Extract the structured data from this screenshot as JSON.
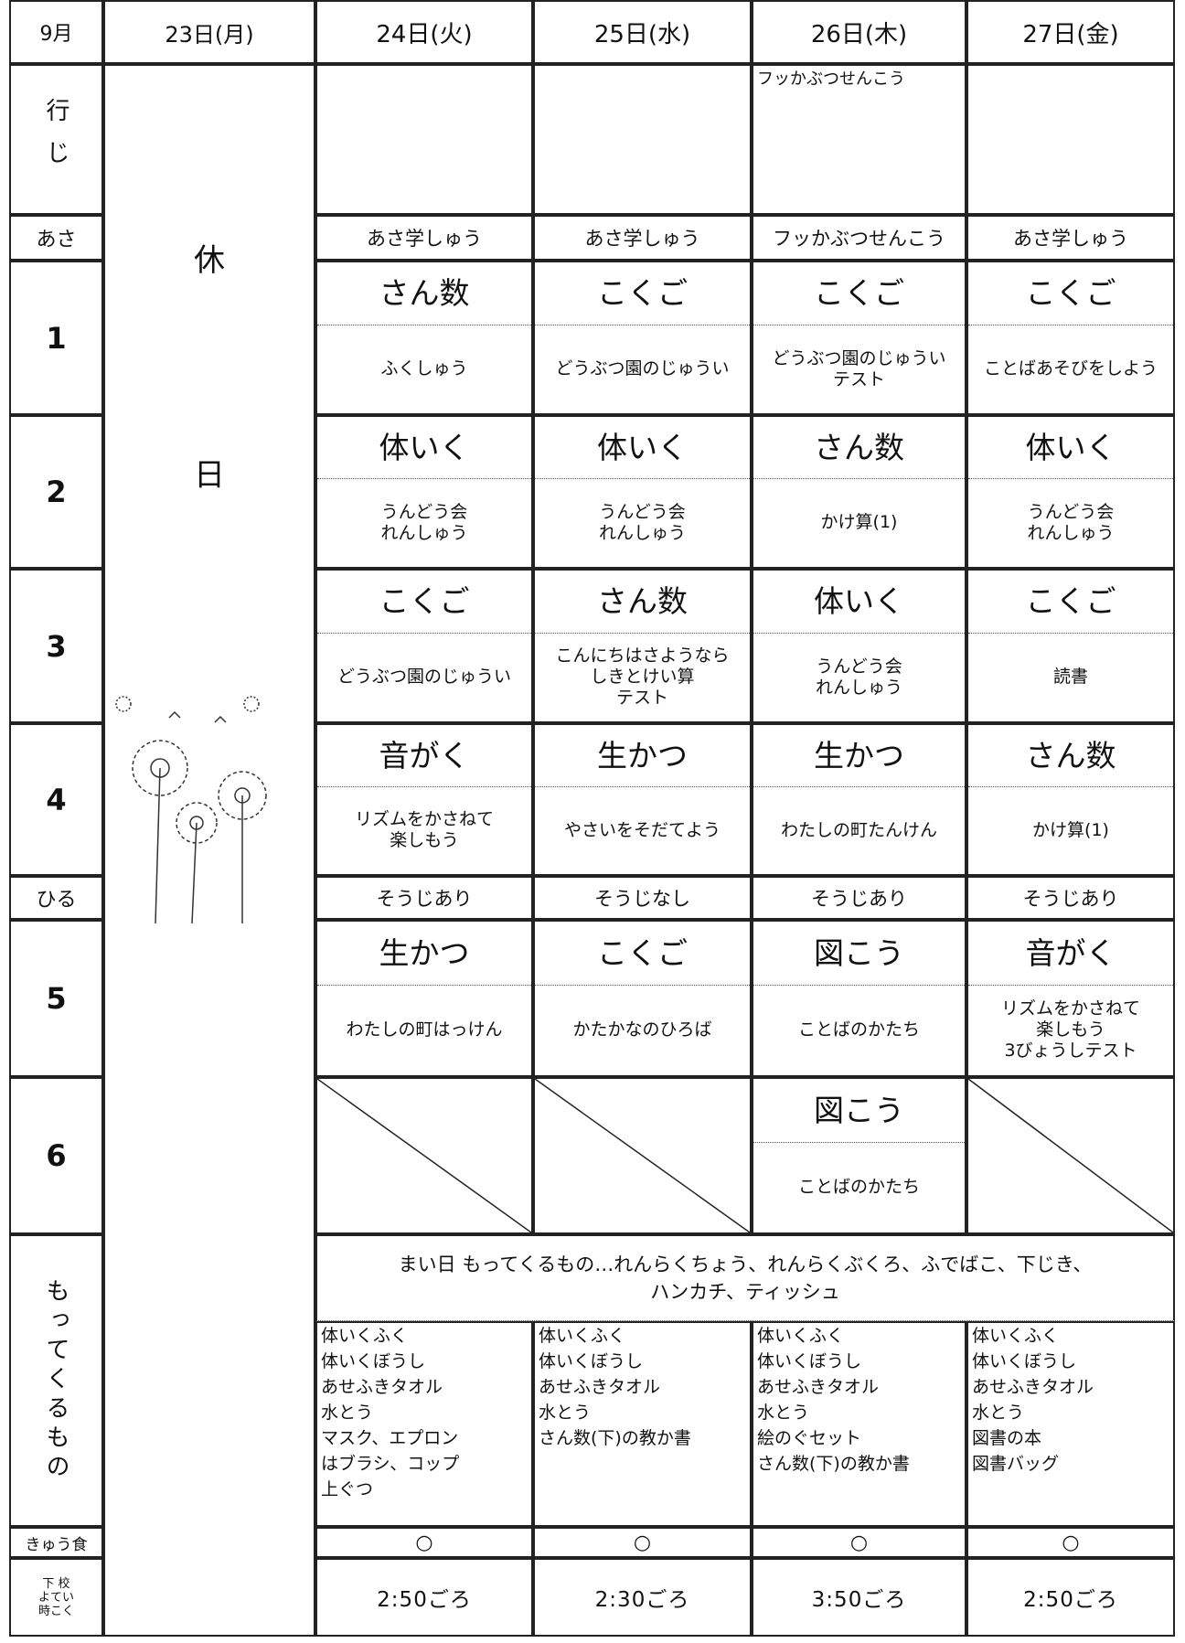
{
  "header": {
    "month": "9月",
    "days": [
      "23日(月)",
      "24日(火)",
      "25日(水)",
      "26日(木)",
      "27日(金)"
    ]
  },
  "row_labels": {
    "events": "行じ",
    "morning": "あさ",
    "periods": [
      "1",
      "2",
      "3",
      "4",
      "5",
      "6"
    ],
    "noon": "ひる",
    "items": "もってくるもの",
    "lunch": "きゅう食",
    "dismissal": "下 校\nよてい\n時こく"
  },
  "holiday": [
    "休",
    "日"
  ],
  "events": [
    null,
    null,
    "フッかぶつせんこう",
    null
  ],
  "morning": [
    "あさ学しゅう",
    "あさ学しゅう",
    "フッかぶつせんこう",
    "あさ学しゅう"
  ],
  "periods": [
    [
      {
        "subject": "さん数",
        "content": "ふくしゅう"
      },
      {
        "subject": "こくご",
        "content": "どうぶつ園のじゅうい"
      },
      {
        "subject": "こくご",
        "content": "どうぶつ園のじゅうい\nテスト"
      },
      {
        "subject": "こくご",
        "content": "ことばあそびをしよう"
      }
    ],
    [
      {
        "subject": "体いく",
        "content": "うんどう会\nれんしゅう"
      },
      {
        "subject": "体いく",
        "content": "うんどう会\nれんしゅう"
      },
      {
        "subject": "さん数",
        "content": "かけ算(1)"
      },
      {
        "subject": "体いく",
        "content": "うんどう会\nれんしゅう"
      }
    ],
    [
      {
        "subject": "こくご",
        "content": "どうぶつ園のじゅうい"
      },
      {
        "subject": "さん数",
        "content": "こんにちはさようなら\nしきとけい算\nテスト"
      },
      {
        "subject": "体いく",
        "content": "うんどう会\nれんしゅう"
      },
      {
        "subject": "こくご",
        "content": "読書"
      }
    ],
    [
      {
        "subject": "音がく",
        "content": "リズムをかさねて\n楽しもう"
      },
      {
        "subject": "生かつ",
        "content": "やさいをそだてよう"
      },
      {
        "subject": "生かつ",
        "content": "わたしの町たんけん"
      },
      {
        "subject": "さん数",
        "content": "かけ算(1)"
      }
    ],
    [
      {
        "subject": "生かつ",
        "content": "わたしの町はっけん"
      },
      {
        "subject": "こくご",
        "content": "かたかなのひろば"
      },
      {
        "subject": "図こう",
        "content": "ことばのかたち"
      },
      {
        "subject": "音がく",
        "content": "リズムをかさねて\n楽しもう\n3びょうしテスト"
      }
    ],
    [
      null,
      null,
      {
        "subject": "図こう",
        "content": "ことばのかたち"
      },
      null
    ]
  ],
  "noon": [
    "そうじあり",
    "そうじなし",
    "そうじあり",
    "そうじあり"
  ],
  "items": {
    "daily": "まい日 もってくるもの…れんらくちょう、れんらくぶくろ、ふでばこ、下じき、\nハンカチ、ティッシュ",
    "days": [
      "体いくふく\n体いくぼうし\nあせふきタオル\n水とう\nマスク、エプロン\nはブラシ、コップ\n上ぐつ",
      "体いくふく\n体いくぼうし\nあせふきタオル\n水とう\nさん数(下)の教か書",
      "体いくふく\n体いくぼうし\nあせふきタオル\n水とう\n絵のぐセット\nさん数(下)の教か書",
      "体いくふく\n体いくぼうし\nあせふきタオル\n水とう\n図書の本\n図書バッグ"
    ]
  },
  "lunch": [
    "○",
    "○",
    "○",
    "○"
  ],
  "dismissal": [
    "2:50ごろ",
    "2:30ごろ",
    "3:50ごろ",
    "2:50ごろ"
  ]
}
